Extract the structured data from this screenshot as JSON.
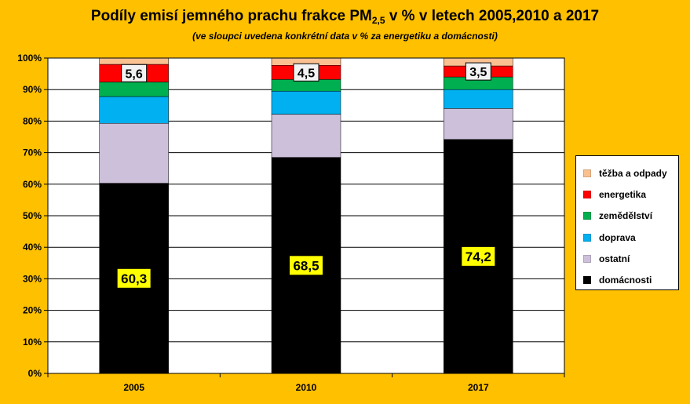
{
  "title": {
    "main_before": "Podíly emisí jemného prachu frakce PM",
    "subscript": "2,5",
    "main_after": " v % v letech 2005,2010 a 2017",
    "subtitle": "(ve sloupci uvedena konkrétní data v % za energetiku a domácnosti)"
  },
  "chart_data": {
    "type": "bar",
    "stacked": true,
    "categories": [
      "2005",
      "2010",
      "2017"
    ],
    "series": [
      {
        "name": "domácnosti",
        "color": "#000000",
        "values": [
          60.3,
          68.5,
          74.2
        ]
      },
      {
        "name": "ostatní",
        "color": "#CCC0DA",
        "values": [
          19.0,
          13.7,
          9.8
        ]
      },
      {
        "name": "doprava",
        "color": "#00B0F0",
        "values": [
          8.5,
          7.3,
          6.0
        ]
      },
      {
        "name": "zemědělství",
        "color": "#00B050",
        "values": [
          4.6,
          3.7,
          4.0
        ]
      },
      {
        "name": "energetika",
        "color": "#FF0000",
        "values": [
          5.6,
          4.5,
          3.5
        ]
      },
      {
        "name": "těžba a odpady",
        "color": "#FAC090",
        "values": [
          2.0,
          2.3,
          2.5
        ]
      }
    ],
    "data_labels": {
      "domácnosti": [
        "60,3",
        "68,5",
        "74,2"
      ],
      "energetika": [
        "5,6",
        "4,5",
        "3,5"
      ]
    },
    "y_ticks": [
      "0%",
      "10%",
      "20%",
      "30%",
      "40%",
      "50%",
      "60%",
      "70%",
      "80%",
      "90%",
      "100%"
    ],
    "ylim": [
      0,
      100
    ],
    "grid": true,
    "legend_position": "right"
  },
  "legend_order": [
    "těžba a odpady",
    "energetika",
    "zemědělství",
    "doprava",
    "ostatní",
    "domácnosti"
  ]
}
